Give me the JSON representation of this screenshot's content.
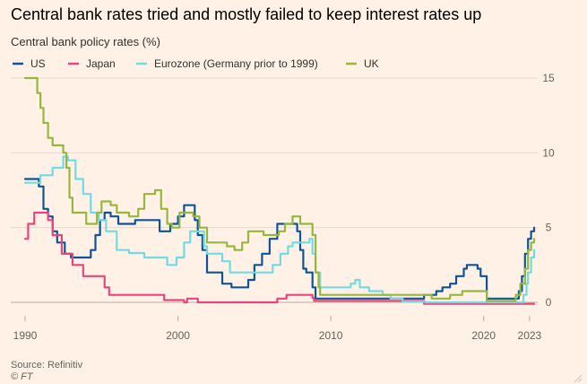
{
  "title": "Central bank rates tried and mostly failed to keep interest rates up",
  "subtitle": "Central bank policy rates (%)",
  "source": "Source: Refinitiv",
  "credit": "© FT",
  "chart_data": {
    "type": "line",
    "title": "Central bank rates tried and mostly failed to keep interest rates up",
    "ylabel": "Central bank policy rates (%)",
    "xlim": [
      1990,
      2023.3
    ],
    "ylim": [
      -1,
      15.5
    ],
    "y_ticks": [
      0,
      5,
      10,
      15
    ],
    "x_ticks": [
      1990,
      2000,
      2010,
      2020,
      2023
    ],
    "y_axis_side": "right",
    "grid": "horizontal",
    "legend_position": "top",
    "series": [
      {
        "name": "US",
        "color": "#0f5499",
        "points": [
          [
            1990,
            8.25
          ],
          [
            1990.6,
            8.25
          ],
          [
            1990.9,
            7.75
          ],
          [
            1991.2,
            6.25
          ],
          [
            1991.5,
            5.75
          ],
          [
            1991.8,
            4.75
          ],
          [
            1992.1,
            4
          ],
          [
            1992.6,
            3.25
          ],
          [
            1993,
            3
          ],
          [
            1994.0,
            3
          ],
          [
            1994.3,
            3.5
          ],
          [
            1994.6,
            4.5
          ],
          [
            1994.9,
            5.5
          ],
          [
            1995.2,
            6
          ],
          [
            1995.6,
            5.75
          ],
          [
            1996.1,
            5.25
          ],
          [
            1997.2,
            5.5
          ],
          [
            1998.8,
            4.75
          ],
          [
            1999.5,
            5.25
          ],
          [
            2000.0,
            5.75
          ],
          [
            2000.4,
            6.5
          ],
          [
            2000.9,
            6.5
          ],
          [
            2001.1,
            5.5
          ],
          [
            2001.3,
            4.5
          ],
          [
            2001.6,
            3.5
          ],
          [
            2001.9,
            2
          ],
          [
            2002.9,
            1.25
          ],
          [
            2003.5,
            1
          ],
          [
            2004.4,
            1
          ],
          [
            2004.6,
            1.5
          ],
          [
            2005.0,
            2.5
          ],
          [
            2005.5,
            3.25
          ],
          [
            2006.0,
            4.25
          ],
          [
            2006.5,
            5.25
          ],
          [
            2007.6,
            5.25
          ],
          [
            2007.8,
            4.75
          ],
          [
            2008.0,
            3.5
          ],
          [
            2008.2,
            2.25
          ],
          [
            2008.4,
            2
          ],
          [
            2008.8,
            1
          ],
          [
            2009.0,
            0.25
          ],
          [
            2015.9,
            0.25
          ],
          [
            2016.1,
            0.5
          ],
          [
            2016.9,
            0.75
          ],
          [
            2017.3,
            1.0
          ],
          [
            2017.8,
            1.25
          ],
          [
            2018.2,
            1.75
          ],
          [
            2018.7,
            2.25
          ],
          [
            2018.9,
            2.5
          ],
          [
            2019.5,
            2.5
          ],
          [
            2019.6,
            2.25
          ],
          [
            2019.8,
            1.75
          ],
          [
            2020.2,
            0.25
          ],
          [
            2022.1,
            0.25
          ],
          [
            2022.3,
            0.75
          ],
          [
            2022.5,
            1.75
          ],
          [
            2022.7,
            3.25
          ],
          [
            2022.9,
            4.25
          ],
          [
            2023.1,
            4.75
          ],
          [
            2023.3,
            5.0
          ]
        ]
      },
      {
        "name": "Japan",
        "color": "#e5467f",
        "points": [
          [
            1990,
            4.25
          ],
          [
            1990.2,
            5.25
          ],
          [
            1990.6,
            6
          ],
          [
            1991.5,
            5.5
          ],
          [
            1991.8,
            4.5
          ],
          [
            1992.4,
            3.25
          ],
          [
            1993.1,
            2.5
          ],
          [
            1993.8,
            1.75
          ],
          [
            1995.2,
            1
          ],
          [
            1995.5,
            0.5
          ],
          [
            1998.5,
            0.5
          ],
          [
            1999.1,
            0.15
          ],
          [
            2000.4,
            0
          ],
          [
            2000.6,
            0.25
          ],
          [
            2001.2,
            0.25
          ],
          [
            2001.3,
            0
          ],
          [
            2006.5,
            0.25
          ],
          [
            2007.1,
            0.5
          ],
          [
            2008.8,
            0.3
          ],
          [
            2008.9,
            0.1
          ],
          [
            2010.8,
            0.1
          ],
          [
            2016.1,
            -0.1
          ],
          [
            2023.3,
            -0.1
          ]
        ]
      },
      {
        "name": "Eurozone (Germany prior to 1999)",
        "color": "#72dae3",
        "points": [
          [
            1990,
            8
          ],
          [
            1990.8,
            8
          ],
          [
            1991.0,
            8.5
          ],
          [
            1991.8,
            9
          ],
          [
            1992.5,
            9.75
          ],
          [
            1992.8,
            9.5
          ],
          [
            1993.3,
            8.25
          ],
          [
            1993.8,
            7.25
          ],
          [
            1994.3,
            6
          ],
          [
            1994.8,
            5.5
          ],
          [
            1995.3,
            4.75
          ],
          [
            1996.0,
            3.5
          ],
          [
            1996.8,
            3.3
          ],
          [
            1997.8,
            3
          ],
          [
            1999.0,
            3
          ],
          [
            1999.3,
            2.5
          ],
          [
            1999.9,
            3
          ],
          [
            2000.4,
            4
          ],
          [
            2000.8,
            4.75
          ],
          [
            2001.3,
            4.75
          ],
          [
            2001.7,
            3.75
          ],
          [
            2001.9,
            3.25
          ],
          [
            2002.9,
            2.75
          ],
          [
            2003.4,
            2.0
          ],
          [
            2005.9,
            2.0
          ],
          [
            2006.2,
            2.5
          ],
          [
            2006.7,
            3.25
          ],
          [
            2007.2,
            3.75
          ],
          [
            2007.5,
            4
          ],
          [
            2008.6,
            4.25
          ],
          [
            2008.8,
            3.25
          ],
          [
            2009.0,
            2
          ],
          [
            2009.3,
            1
          ],
          [
            2011.3,
            1.25
          ],
          [
            2011.6,
            1.5
          ],
          [
            2011.9,
            1.0
          ],
          [
            2012.5,
            0.75
          ],
          [
            2013.4,
            0.5
          ],
          [
            2013.9,
            0.25
          ],
          [
            2014.7,
            0.05
          ],
          [
            2016.2,
            0
          ],
          [
            2022.5,
            0
          ],
          [
            2022.6,
            0.5
          ],
          [
            2022.8,
            1.25
          ],
          [
            2022.9,
            2.0
          ],
          [
            2023.1,
            3
          ],
          [
            2023.3,
            3.5
          ]
        ]
      },
      {
        "name": "UK",
        "color": "#96b73c",
        "points": [
          [
            1990,
            15
          ],
          [
            1990.7,
            15
          ],
          [
            1990.8,
            14
          ],
          [
            1991.0,
            13
          ],
          [
            1991.2,
            12
          ],
          [
            1991.5,
            11
          ],
          [
            1991.8,
            10.5
          ],
          [
            1992.5,
            10
          ],
          [
            1992.7,
            9
          ],
          [
            1992.9,
            7
          ],
          [
            1993.1,
            6
          ],
          [
            1994.0,
            5.25
          ],
          [
            1994.7,
            6
          ],
          [
            1995.0,
            6.75
          ],
          [
            1995.6,
            6.5
          ],
          [
            1996.0,
            6
          ],
          [
            1996.8,
            5.75
          ],
          [
            1997.4,
            6.25
          ],
          [
            1997.8,
            7.25
          ],
          [
            1998.5,
            7.5
          ],
          [
            1998.9,
            6.25
          ],
          [
            1999.3,
            5.25
          ],
          [
            1999.6,
            5
          ],
          [
            2000.1,
            6
          ],
          [
            2001.0,
            5.75
          ],
          [
            2001.4,
            5
          ],
          [
            2001.9,
            4
          ],
          [
            2003.2,
            3.75
          ],
          [
            2003.7,
            3.5
          ],
          [
            2004.2,
            4
          ],
          [
            2004.6,
            4.75
          ],
          [
            2005.6,
            4.5
          ],
          [
            2006.6,
            4.75
          ],
          [
            2007.0,
            5.25
          ],
          [
            2007.5,
            5.75
          ],
          [
            2008.0,
            5.25
          ],
          [
            2008.8,
            4.5
          ],
          [
            2009.0,
            2
          ],
          [
            2009.2,
            1
          ],
          [
            2009.3,
            0.5
          ],
          [
            2016.6,
            0.25
          ],
          [
            2017.8,
            0.5
          ],
          [
            2018.6,
            0.75
          ],
          [
            2020.2,
            0.1
          ],
          [
            2021.9,
            0.1
          ],
          [
            2022.1,
            0.5
          ],
          [
            2022.4,
            1.25
          ],
          [
            2022.7,
            2.25
          ],
          [
            2022.9,
            3.5
          ],
          [
            2023.1,
            4
          ],
          [
            2023.3,
            4.25
          ]
        ]
      }
    ]
  }
}
